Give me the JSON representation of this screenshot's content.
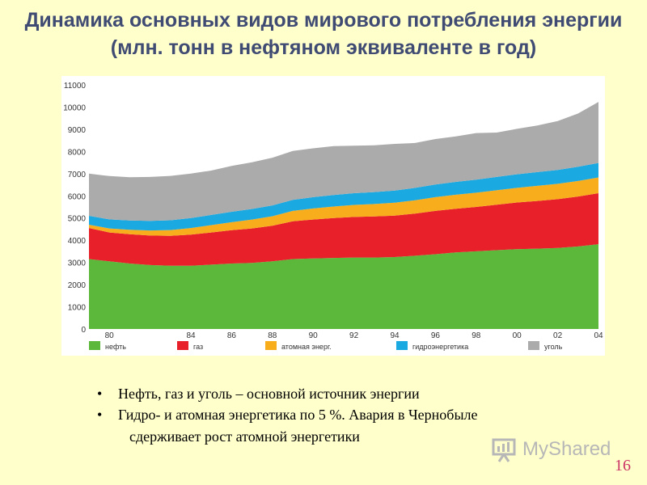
{
  "title": "Динамика основных видов мирового потребления энергии (млн. тонн в нефтяном эквиваленте в год)",
  "colors": {
    "oil": "#5cb83a",
    "gas": "#e8202a",
    "nuclear": "#f7ad1c",
    "hydro": "#1ba9e1",
    "coal": "#ababab"
  },
  "chart_data": {
    "type": "area",
    "stacked": true,
    "ylim": [
      0,
      11000
    ],
    "yticks": [
      "0",
      "1000",
      "2000",
      "3000",
      "4000",
      "5000",
      "6000",
      "7000",
      "8000",
      "9000",
      "10000",
      "11000"
    ],
    "x": [
      1979,
      1980,
      1981,
      1982,
      1983,
      1984,
      1985,
      1986,
      1987,
      1988,
      1989,
      1990,
      1991,
      1992,
      1993,
      1994,
      1995,
      1996,
      1997,
      1998,
      1999,
      2000,
      2001,
      2002,
      2003,
      2004
    ],
    "xticks": [
      "80",
      "84",
      "86",
      "88",
      "90",
      "92",
      "94",
      "96",
      "98",
      "00",
      "02",
      "04"
    ],
    "xtick_years": [
      1980,
      1984,
      1986,
      1988,
      1990,
      1992,
      1994,
      1996,
      1998,
      2000,
      2002,
      2004
    ],
    "legend_position": "bottom",
    "series": [
      {
        "name": "нефть",
        "color_key": "oil",
        "values": [
          3150,
          3050,
          2950,
          2880,
          2850,
          2850,
          2900,
          2950,
          2980,
          3050,
          3150,
          3180,
          3200,
          3220,
          3220,
          3240,
          3300,
          3370,
          3450,
          3500,
          3550,
          3600,
          3620,
          3650,
          3720,
          3820
        ]
      },
      {
        "name": "газ",
        "color_key": "gas",
        "values": [
          1400,
          1300,
          1320,
          1330,
          1350,
          1400,
          1450,
          1500,
          1550,
          1600,
          1700,
          1750,
          1800,
          1830,
          1850,
          1870,
          1900,
          1950,
          1970,
          2000,
          2050,
          2100,
          2150,
          2200,
          2250,
          2300
        ]
      },
      {
        "name": "атомная энерг.",
        "color_key": "nuclear",
        "values": [
          150,
          180,
          200,
          230,
          260,
          300,
          330,
          360,
          400,
          430,
          470,
          500,
          520,
          540,
          560,
          580,
          600,
          620,
          630,
          640,
          650,
          660,
          680,
          690,
          700,
          710
        ]
      },
      {
        "name": "гидроэнергетика",
        "color_key": "hydro",
        "values": [
          400,
          410,
          420,
          430,
          440,
          450,
          460,
          470,
          480,
          490,
          500,
          510,
          520,
          530,
          540,
          550,
          560,
          570,
          580,
          590,
          600,
          610,
          620,
          630,
          640,
          650
        ]
      },
      {
        "name": "уголь",
        "color_key": "coal",
        "values": [
          1900,
          1950,
          1950,
          1980,
          2000,
          2000,
          2000,
          2070,
          2100,
          2150,
          2200,
          2200,
          2200,
          2140,
          2110,
          2100,
          2020,
          2050,
          2050,
          2100,
          2000,
          2050,
          2100,
          2200,
          2400,
          2750
        ]
      }
    ]
  },
  "bullets": [
    {
      "marker": "•",
      "text": "Нефть, газ и уголь – основной источник энергии"
    },
    {
      "marker": "•",
      "text": "Гидро- и атомная энергетика по 5 %. Авария в Чернобыле"
    }
  ],
  "bullet_continuation": "сдерживает рост атомной энергетики",
  "logo": {
    "text": "MyShared",
    "icon": "presentation-board-icon"
  },
  "page_number": "16"
}
